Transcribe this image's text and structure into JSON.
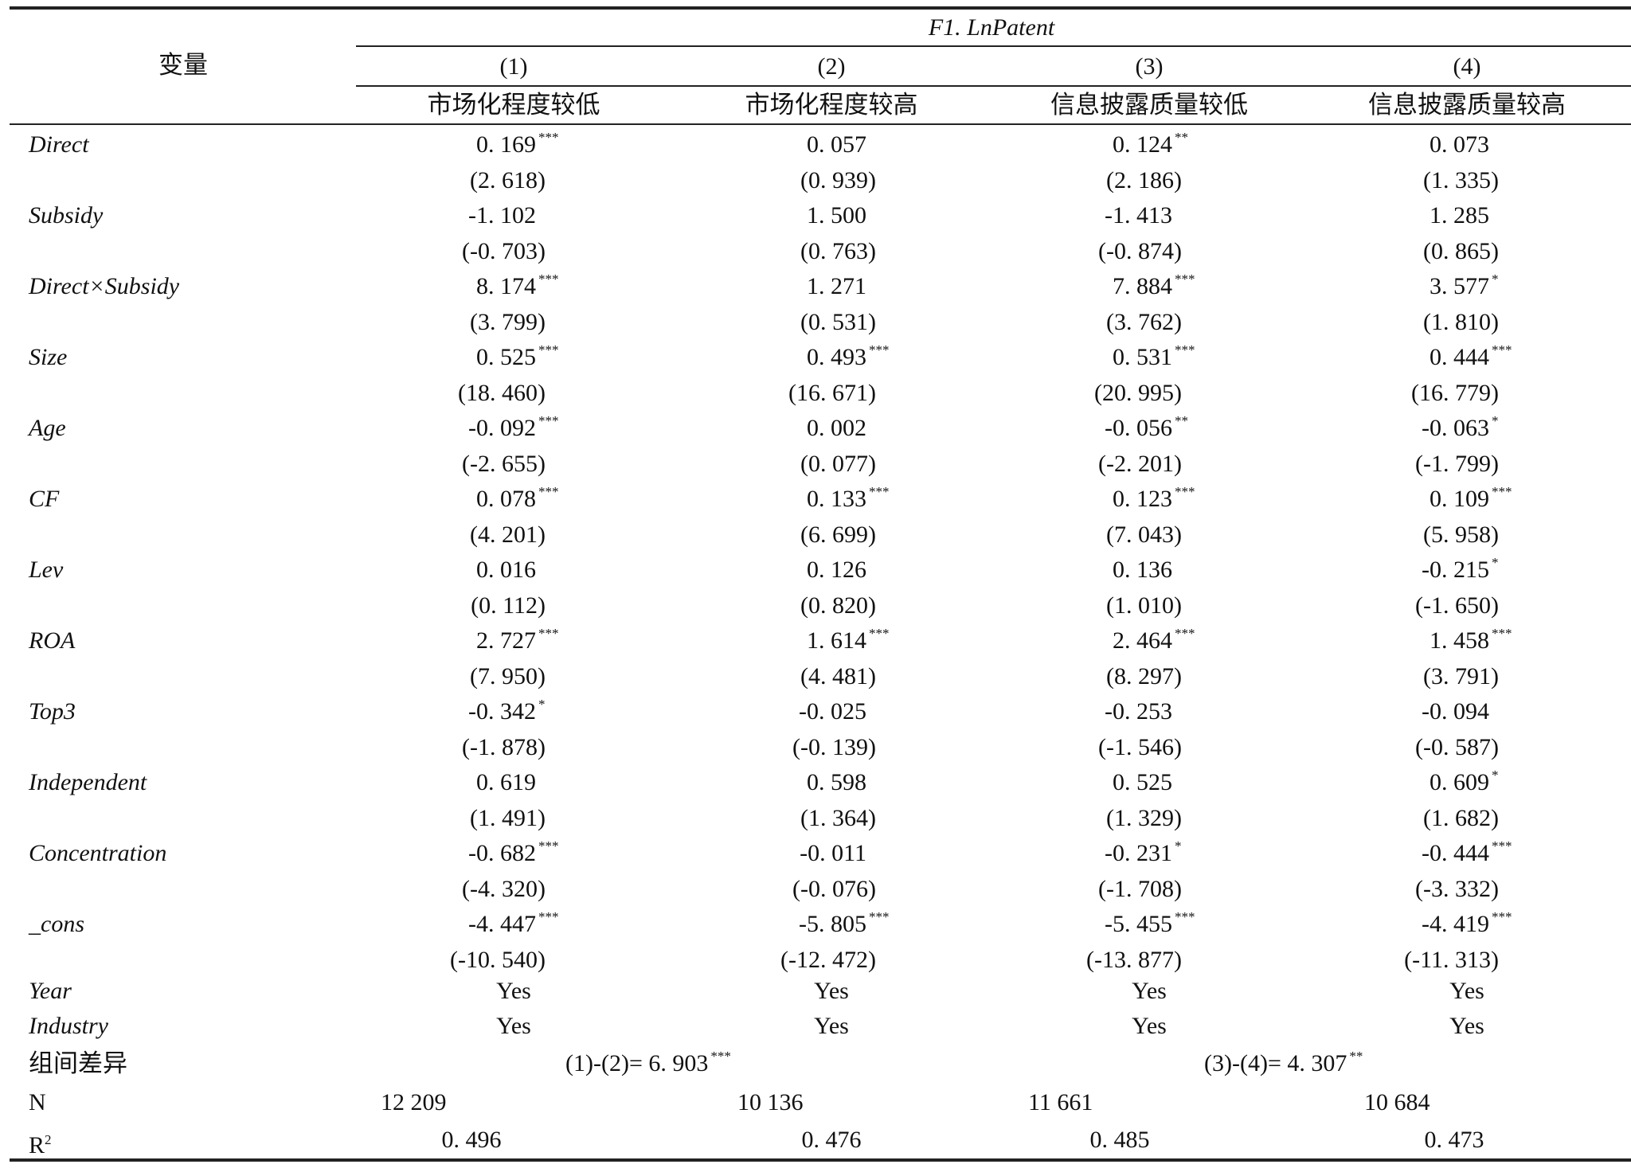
{
  "header": {
    "variable_label": "变量",
    "dep_var": "F1. LnPatent",
    "columns": [
      {
        "num": "(1)",
        "group": "市场化程度较低"
      },
      {
        "num": "(2)",
        "group": "市场化程度较高"
      },
      {
        "num": "(3)",
        "group": "信息披露质量较低"
      },
      {
        "num": "(4)",
        "group": "信息披露质量较高"
      }
    ]
  },
  "rows": [
    {
      "label": "Direct",
      "coef": [
        "0. 169",
        "0. 057",
        "0. 124",
        "0. 073"
      ],
      "stars": [
        "***",
        "",
        "**",
        ""
      ],
      "t": [
        "(2. 618)",
        "(0. 939)",
        "(2. 186)",
        "(1. 335)"
      ]
    },
    {
      "label": "Subsidy",
      "coef": [
        "-1. 102",
        "1. 500",
        "-1. 413",
        "1. 285"
      ],
      "stars": [
        "",
        "",
        "",
        ""
      ],
      "t": [
        "(-0. 703)",
        "(0. 763)",
        "(-0. 874)",
        "(0. 865)"
      ]
    },
    {
      "label": "Direct×Subsidy",
      "coef": [
        "8. 174",
        "1. 271",
        "7. 884",
        "3. 577"
      ],
      "stars": [
        "***",
        "",
        "***",
        "*"
      ],
      "t": [
        "(3. 799)",
        "(0. 531)",
        "(3. 762)",
        "(1. 810)"
      ]
    },
    {
      "label": "Size",
      "coef": [
        "0. 525",
        "0. 493",
        "0. 531",
        "0. 444"
      ],
      "stars": [
        "***",
        "***",
        "***",
        "***"
      ],
      "t": [
        "(18. 460)",
        "(16. 671)",
        "(20. 995)",
        "(16. 779)"
      ]
    },
    {
      "label": "Age",
      "coef": [
        "-0. 092",
        "0. 002",
        "-0. 056",
        "-0. 063"
      ],
      "stars": [
        "***",
        "",
        "**",
        "*"
      ],
      "t": [
        "(-2. 655)",
        "(0. 077)",
        "(-2. 201)",
        "(-1. 799)"
      ]
    },
    {
      "label": "CF",
      "coef": [
        "0. 078",
        "0. 133",
        "0. 123",
        "0. 109"
      ],
      "stars": [
        "***",
        "***",
        "***",
        "***"
      ],
      "t": [
        "(4. 201)",
        "(6. 699)",
        "(7. 043)",
        "(5. 958)"
      ]
    },
    {
      "label": "Lev",
      "coef": [
        "0. 016",
        "0. 126",
        "0. 136",
        "-0. 215"
      ],
      "stars": [
        "",
        "",
        "",
        "*"
      ],
      "t": [
        "(0. 112)",
        "(0. 820)",
        "(1. 010)",
        "(-1. 650)"
      ]
    },
    {
      "label": "ROA",
      "coef": [
        "2. 727",
        "1. 614",
        "2. 464",
        "1. 458"
      ],
      "stars": [
        "***",
        "***",
        "***",
        "***"
      ],
      "t": [
        "(7. 950)",
        "(4. 481)",
        "(8. 297)",
        "(3. 791)"
      ]
    },
    {
      "label": "Top3",
      "coef": [
        "-0. 342",
        "-0. 025",
        "-0. 253",
        "-0. 094"
      ],
      "stars": [
        "*",
        "",
        "",
        ""
      ],
      "t": [
        "(-1. 878)",
        "(-0. 139)",
        "(-1. 546)",
        "(-0. 587)"
      ]
    },
    {
      "label": "Independent",
      "coef": [
        "0. 619",
        "0. 598",
        "0. 525",
        "0. 609"
      ],
      "stars": [
        "",
        "",
        "",
        "*"
      ],
      "t": [
        "(1. 491)",
        "(1. 364)",
        "(1. 329)",
        "(1. 682)"
      ]
    },
    {
      "label": "Concentration",
      "coef": [
        "-0. 682",
        "-0. 011",
        "-0. 231",
        "-0. 444"
      ],
      "stars": [
        "***",
        "",
        "*",
        "***"
      ],
      "t": [
        "(-4. 320)",
        "(-0. 076)",
        "(-1. 708)",
        "(-3. 332)"
      ]
    },
    {
      "label": "_cons",
      "coef": [
        "-4. 447",
        "-5. 805",
        "-5. 455",
        "-4. 419"
      ],
      "stars": [
        "***",
        "***",
        "***",
        "***"
      ],
      "t": [
        "(-10. 540)",
        "(-12. 472)",
        "(-13. 877)",
        "(-11. 313)"
      ]
    }
  ],
  "fixed_effects": [
    {
      "label": "Year",
      "values": [
        "Yes",
        "Yes",
        "Yes",
        "Yes"
      ]
    },
    {
      "label": "Industry",
      "values": [
        "Yes",
        "Yes",
        "Yes",
        "Yes"
      ]
    }
  ],
  "group_diff": {
    "label": "组间差异",
    "left": {
      "text": "(1)-(2)= 6. 903",
      "stars": "***"
    },
    "right": {
      "text": "(3)-(4)= 4. 307",
      "stars": "**"
    }
  },
  "n": {
    "label": "N",
    "values": [
      "12 209",
      "10 136",
      "11 661",
      "10 684"
    ]
  },
  "r2": {
    "label": "R",
    "sup": "2",
    "values": [
      "0. 496",
      "0. 476",
      "0. 485",
      "0. 473"
    ]
  }
}
